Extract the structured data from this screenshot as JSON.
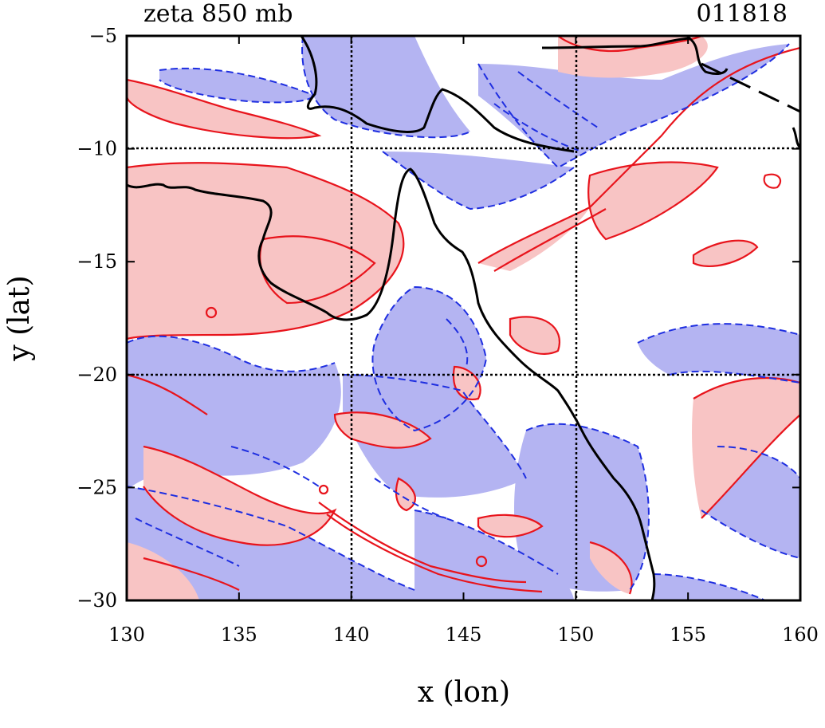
{
  "header": {
    "title_left": "zeta 850 mb",
    "title_right": "011818"
  },
  "axes": {
    "xlabel": "x (lon)",
    "ylabel": "y (lat)",
    "xlim": [
      130,
      160
    ],
    "ylim": [
      -30,
      -5
    ],
    "xticks": [
      130,
      135,
      140,
      145,
      150,
      155,
      160
    ],
    "yticks": [
      -5,
      -10,
      -15,
      -20,
      -25,
      -30
    ],
    "xtick_labels": [
      "130",
      "135",
      "140",
      "145",
      "150",
      "155",
      "160"
    ],
    "ytick_labels": [
      "−5",
      "−10",
      "−15",
      "−20",
      "−25",
      "−30"
    ],
    "grid_lon": [
      140,
      150
    ],
    "grid_lat": [
      -10,
      -20
    ]
  },
  "colors": {
    "positive_fill": "#f8c4c4",
    "positive_line": "#e8141c",
    "negative_fill": "#b4b4f2",
    "negative_line": "#1e2ee0",
    "coastline": "#000000",
    "grid": "#000000"
  },
  "map": {
    "variable": "relative vorticity (zeta)",
    "level": "850 mb",
    "positive_contours": "solid red with pink shading",
    "negative_contours": "dashed blue with light-blue shading",
    "coastline_region": "northern and eastern Australia, southern New Guinea"
  },
  "chart_data": {
    "type": "contour-map",
    "xlim": [
      130,
      160
    ],
    "ylim": [
      -30,
      -5
    ],
    "grid": true
  }
}
